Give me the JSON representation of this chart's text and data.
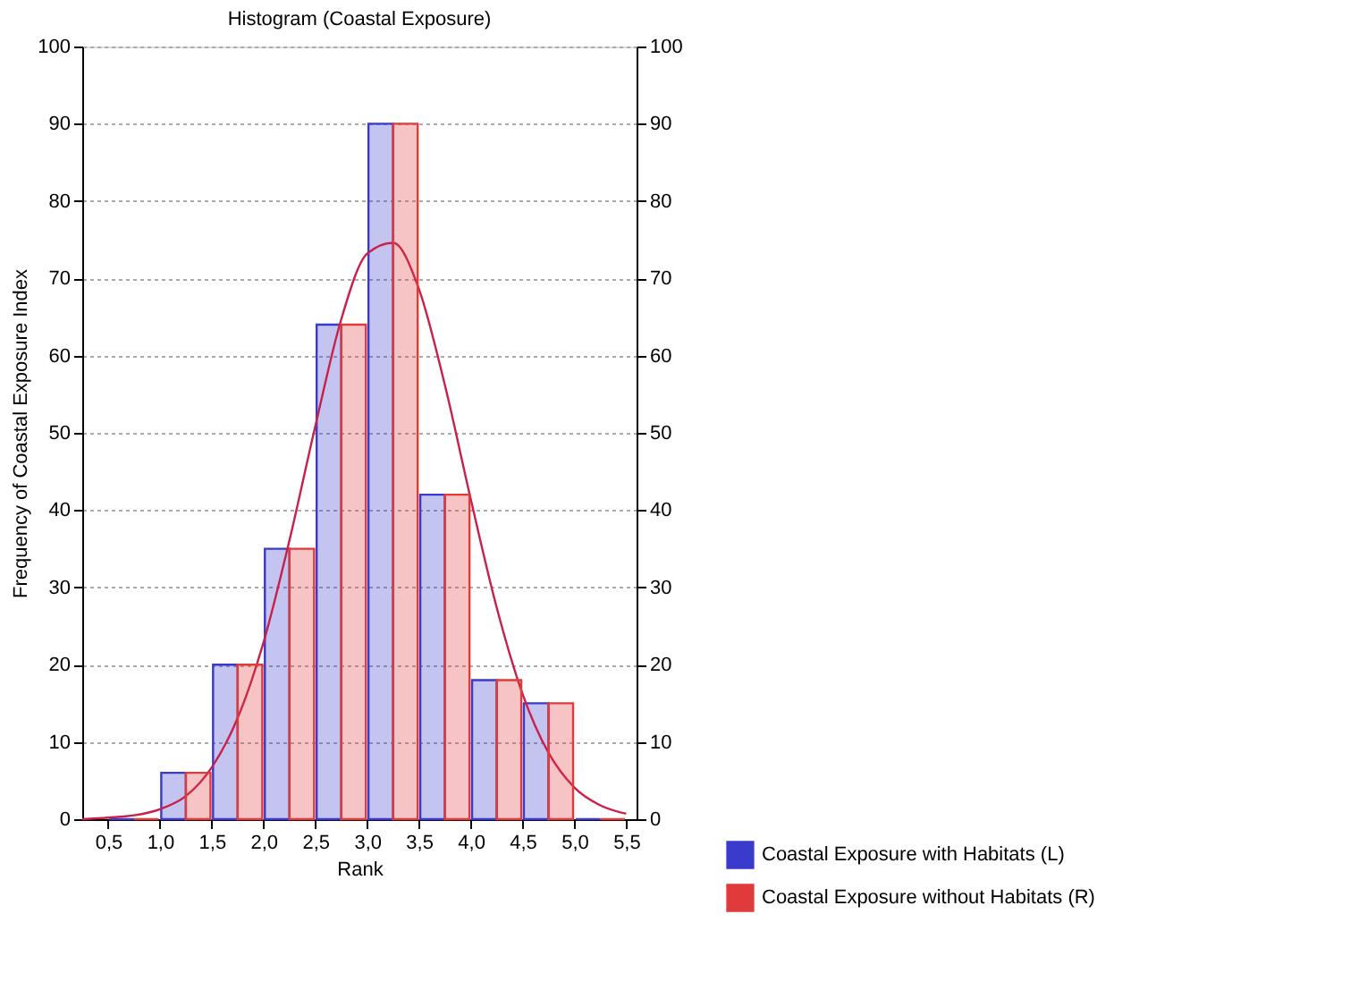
{
  "chart_data": {
    "type": "histogram",
    "title": "Histogram (Coastal Exposure)",
    "xlabel": "Rank",
    "ylabel": "Frequency of Coastal Exposure Index",
    "bins": [
      0.5,
      1.0,
      1.5,
      2.0,
      2.5,
      3.0,
      3.5,
      4.0,
      4.5,
      5.0,
      5.5
    ],
    "series": [
      {
        "name": "Coastal Exposure with Habitats (L)",
        "color": "#3a3acc",
        "axis": "y",
        "values": [
          0,
          6,
          20,
          35,
          64,
          90,
          42,
          18,
          15,
          0
        ]
      },
      {
        "name": "Coastal Exposure without Habitats (R)",
        "color": "#e03a3a",
        "axis": "y2",
        "values": [
          0,
          6,
          20,
          35,
          64,
          90,
          42,
          18,
          15,
          0
        ]
      },
      {
        "type": "line",
        "color": "#c8204a",
        "axis": "y",
        "x": [
          0.25,
          0.5,
          0.75,
          1.0,
          1.25,
          1.5,
          1.75,
          2.0,
          2.25,
          2.5,
          2.75,
          3.0,
          3.25,
          3.5,
          3.75,
          4.0,
          4.25,
          4.5,
          4.75,
          5.0,
          5.25,
          5.5
        ],
        "values": [
          0.0,
          0.2,
          0.5,
          1.3,
          3.0,
          6.7,
          13.1,
          22.9,
          36.1,
          50.9,
          64.7,
          73.2,
          74.6,
          68.6,
          56.2,
          41.4,
          27.4,
          16.2,
          8.6,
          4.1,
          1.8,
          0.7
        ]
      }
    ],
    "xlim": [
      0.25,
      5.6
    ],
    "xticks": [
      {
        "value": 0.5,
        "label": "0,5"
      },
      {
        "value": 1.0,
        "label": "1,0"
      },
      {
        "value": 1.5,
        "label": "1,5"
      },
      {
        "value": 2.0,
        "label": "2,0"
      },
      {
        "value": 2.5,
        "label": "2,5"
      },
      {
        "value": 3.0,
        "label": "3,0"
      },
      {
        "value": 3.5,
        "label": "3,5"
      },
      {
        "value": 4.0,
        "label": "4,0"
      },
      {
        "value": 4.5,
        "label": "4,5"
      },
      {
        "value": 5.0,
        "label": "5,0"
      },
      {
        "value": 5.5,
        "label": "5,5"
      }
    ],
    "ylim": [
      0,
      100
    ],
    "yticks": [
      0,
      10,
      20,
      30,
      40,
      50,
      60,
      70,
      80,
      90,
      100
    ],
    "y2lim": [
      0,
      100
    ],
    "y2ticks": [
      0,
      10,
      20,
      30,
      40,
      50,
      60,
      70,
      80,
      90,
      100
    ],
    "grid": "y",
    "legend": "bottom right"
  }
}
